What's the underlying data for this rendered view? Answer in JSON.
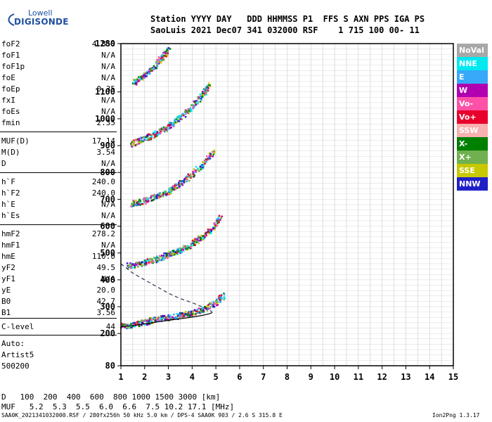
{
  "logo": {
    "line1": "Lowell",
    "line2": "DIGISONDE"
  },
  "header": {
    "line1": "Station YYYY DAY   DDD HHMMSS P1  FFS S AXN PPS IGA PS",
    "line2": "SaoLuis 2021 Dec07 341 032000 RSF    1 715 100 00- 11"
  },
  "params": [
    {
      "k": "foF2",
      "v": "4.850"
    },
    {
      "k": "foF1",
      "v": "N/A"
    },
    {
      "k": "foF1p",
      "v": "N/A"
    },
    {
      "k": "foE",
      "v": "N/A"
    },
    {
      "k": "foEp",
      "v": "0.35"
    },
    {
      "k": "fxI",
      "v": "N/A"
    },
    {
      "k": "foEs",
      "v": "N/A"
    },
    {
      "k": "fmin",
      "v": "2.35"
    },
    {
      "k": "MUF(D)",
      "v": "17.14"
    },
    {
      "k": "M(D)",
      "v": "3.54"
    },
    {
      "k": "D",
      "v": "N/A"
    },
    {
      "k": "h`F",
      "v": "240.0"
    },
    {
      "k": "h`F2",
      "v": "240.0"
    },
    {
      "k": "h`E",
      "v": "N/A"
    },
    {
      "k": "h`Es",
      "v": "N/A"
    },
    {
      "k": "hmF2",
      "v": "278.2"
    },
    {
      "k": "hmF1",
      "v": "N/A"
    },
    {
      "k": "hmE",
      "v": "110.0"
    },
    {
      "k": "yF2",
      "v": "49.5"
    },
    {
      "k": "yF1",
      "v": "N/A"
    },
    {
      "k": "yE",
      "v": "20.0"
    },
    {
      "k": "B0",
      "v": "42.7"
    },
    {
      "k": "B1",
      "v": "3.56"
    },
    {
      "k": "C-level",
      "v": "44"
    }
  ],
  "auto": {
    "l1": "Auto:",
    "l2": "Artist5",
    "l3": "500200"
  },
  "legend": [
    {
      "label": "NoVal",
      "color": "#a8a8a8"
    },
    {
      "label": "NNE",
      "color": "#00e8f0"
    },
    {
      "label": "E",
      "color": "#38a8f8"
    },
    {
      "label": "W",
      "color": "#b000b0"
    },
    {
      "label": "Vo-",
      "color": "#ff50a8"
    },
    {
      "label": "Vo+",
      "color": "#e8002c"
    },
    {
      "label": "SSW",
      "color": "#f8b0b0"
    },
    {
      "label": "X-",
      "color": "#008000"
    },
    {
      "label": "X+",
      "color": "#70b050"
    },
    {
      "label": "SSE",
      "color": "#c8c800"
    },
    {
      "label": "NNW",
      "color": "#2020c8"
    }
  ],
  "bottom": {
    "d_label": "D",
    "d_values": "100  200  400  600  800 1000 1500 3000 [km]",
    "muf_label": "MUF",
    "muf_values": "5.2  5.3  5.5  6.0  6.6  7.5 10.2 17.1 [MHz]"
  },
  "footer": {
    "left": "SAA0K_2021341032000.RSF / 280fx256h 50 kHz 5.0 km / DPS-4 SAA0K 903 / 2.6 S 315.8 E",
    "right": "Ion2Png 1.3.17"
  },
  "chart_data": {
    "type": "scatter",
    "title": "",
    "xlabel": "",
    "ylabel": "",
    "xlim": [
      1,
      15
    ],
    "ylim": [
      80,
      1280
    ],
    "x_ticks": [
      1,
      2,
      3,
      4,
      5,
      6,
      7,
      8,
      9,
      10,
      11,
      12,
      13,
      14,
      15
    ],
    "y_ticks": [
      80,
      200,
      300,
      400,
      500,
      600,
      700,
      800,
      900,
      1000,
      1100,
      1280
    ],
    "grid": true,
    "traces": [
      {
        "name": "echo-1",
        "x": [
          1.0,
          1.5,
          2.0,
          2.5,
          3.0,
          3.5,
          4.0,
          4.5,
          5.0,
          5.3
        ],
        "y": [
          230,
          235,
          245,
          255,
          262,
          270,
          280,
          295,
          320,
          345
        ]
      },
      {
        "name": "echo-2",
        "x": [
          1.3,
          1.8,
          2.3,
          2.8,
          3.3,
          3.8,
          4.3,
          4.8,
          5.2
        ],
        "y": [
          455,
          462,
          475,
          490,
          505,
          525,
          555,
          590,
          640
        ]
      },
      {
        "name": "echo-3",
        "x": [
          1.4,
          1.9,
          2.4,
          2.9,
          3.4,
          3.9,
          4.4,
          4.9
        ],
        "y": [
          685,
          695,
          710,
          730,
          755,
          790,
          830,
          880
        ]
      },
      {
        "name": "echo-4",
        "x": [
          1.4,
          1.9,
          2.4,
          2.9,
          3.4,
          3.9,
          4.4,
          4.7
        ],
        "y": [
          910,
          925,
          945,
          970,
          1000,
          1040,
          1090,
          1130
        ]
      },
      {
        "name": "echo-5",
        "x": [
          1.5,
          1.9,
          2.3,
          2.7,
          3.0
        ],
        "y": [
          1135,
          1160,
          1190,
          1230,
          1260
        ]
      }
    ],
    "profile": {
      "x": [
        1.0,
        1.5,
        2.0,
        2.5,
        3.0,
        3.5,
        4.0,
        4.4,
        4.7,
        4.85
      ],
      "y": [
        225,
        230,
        236,
        243,
        249,
        255,
        261,
        267,
        273,
        278
      ]
    },
    "profile_dashed": {
      "x": [
        1.0,
        1.5,
        2.0,
        2.5,
        3.0,
        3.5,
        4.0,
        4.4,
        4.7,
        4.85
      ],
      "y": [
        460,
        425,
        400,
        375,
        350,
        330,
        315,
        300,
        290,
        280
      ]
    }
  }
}
